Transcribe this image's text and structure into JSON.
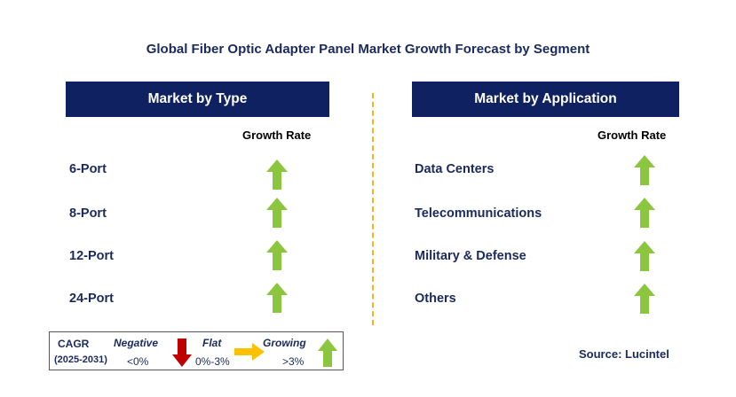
{
  "title": "Global Fiber Optic Adapter Panel Market Growth Forecast by Segment",
  "left_panel": {
    "header": "Market by Type",
    "rate_label": "Growth Rate",
    "rows": [
      {
        "label": "6-Port",
        "trend": "growing"
      },
      {
        "label": "8-Port",
        "trend": "growing"
      },
      {
        "label": "12-Port",
        "trend": "growing"
      },
      {
        "label": "24-Port",
        "trend": "growing"
      }
    ]
  },
  "right_panel": {
    "header": "Market by Application",
    "rate_label": "Growth Rate",
    "rows": [
      {
        "label": "Data Centers",
        "trend": "growing"
      },
      {
        "label": "Telecommunications",
        "trend": "growing"
      },
      {
        "label": "Military & Defense",
        "trend": "growing"
      },
      {
        "label": "Others",
        "trend": "growing"
      }
    ]
  },
  "legend": {
    "cagr": "CAGR",
    "period": "(2025-2031)",
    "negative_label": "Negative",
    "negative_range": "<0%",
    "flat_label": "Flat",
    "flat_range": "0%-3%",
    "growing_label": "Growing",
    "growing_range": ">3%"
  },
  "source": "Source: Lucintel",
  "colors": {
    "header_bg": "#0f2160",
    "growing": "#8cc63f",
    "negative": "#c00000",
    "flat": "#ffc000",
    "divider": "#f0b41e",
    "text": "#1a2a5c"
  },
  "icons": {
    "growing": "arrow-up-icon",
    "negative": "arrow-down-icon",
    "flat": "arrow-right-icon"
  }
}
